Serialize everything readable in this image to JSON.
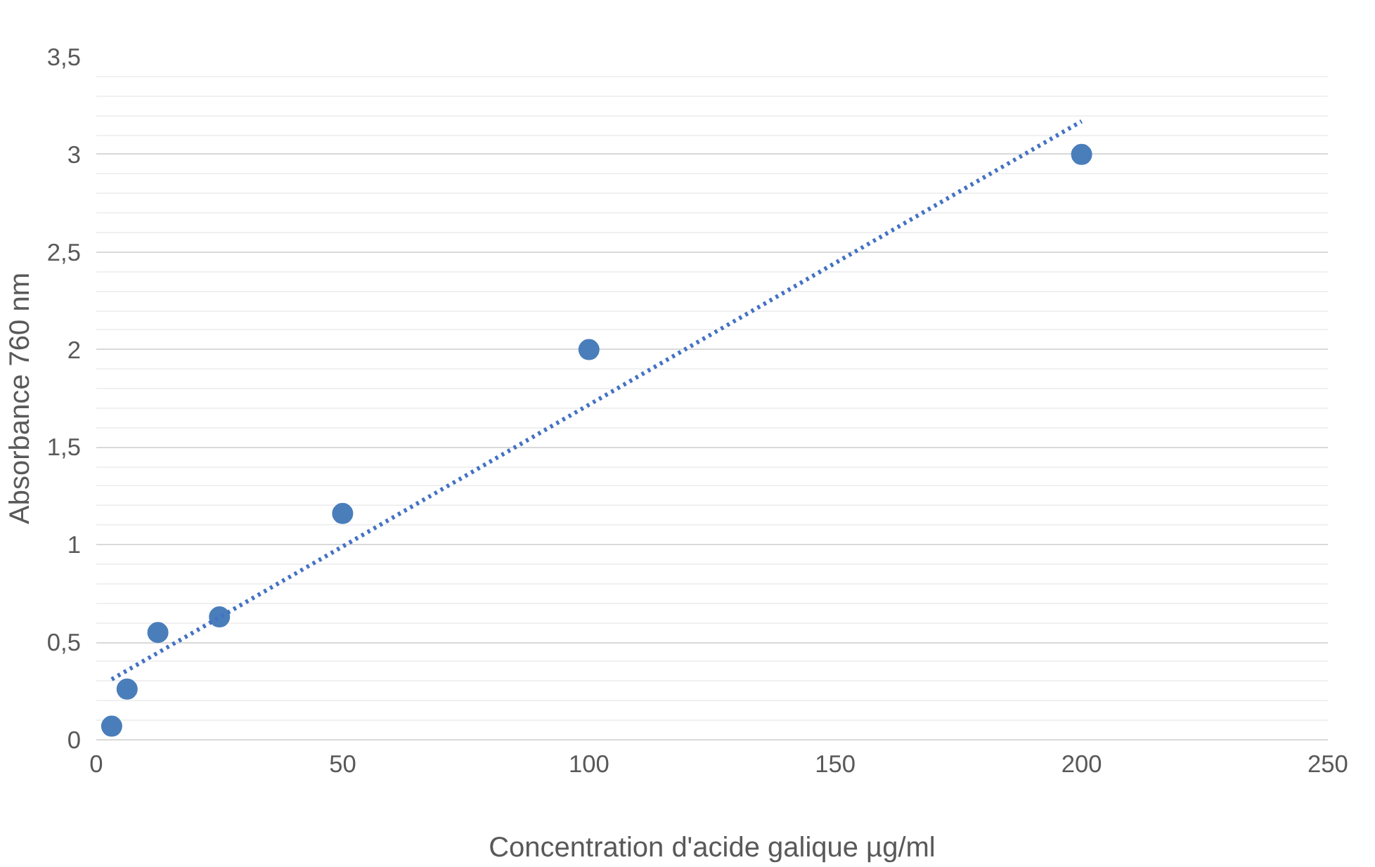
{
  "chart_data": {
    "type": "scatter",
    "xlabel": "Concentration d'acide galique µg/ml",
    "ylabel": "Absorbance 760 nm",
    "x": [
      3.125,
      6.25,
      12.5,
      25,
      50,
      100,
      200
    ],
    "series": [
      {
        "color": "#4a7ebb",
        "values": [
          0.07,
          0.26,
          0.55,
          0.63,
          1.16,
          2.0,
          3.0
        ],
        "marker": "circle"
      },
      {
        "type": "line",
        "color": "#4472c4",
        "x": [
          3.125,
          200
        ],
        "values": [
          0.31,
          3.17
        ],
        "line_style": "dotted",
        "marker": "none"
      }
    ],
    "xlim": [
      0,
      250
    ],
    "xticks": [
      0,
      50,
      100,
      150,
      200,
      250
    ],
    "ylim": [
      0,
      3.5
    ],
    "yticks": [
      {
        "value": 0,
        "label": "0"
      },
      {
        "value": 0.5,
        "label": "0,5"
      },
      {
        "value": 1,
        "label": "1"
      },
      {
        "value": 1.5,
        "label": "1,5"
      },
      {
        "value": 2,
        "label": "2"
      },
      {
        "value": 2.5,
        "label": "2,5"
      },
      {
        "value": 3,
        "label": "3"
      },
      {
        "value": 3.5,
        "label": "3,5"
      }
    ],
    "grid": "y"
  }
}
